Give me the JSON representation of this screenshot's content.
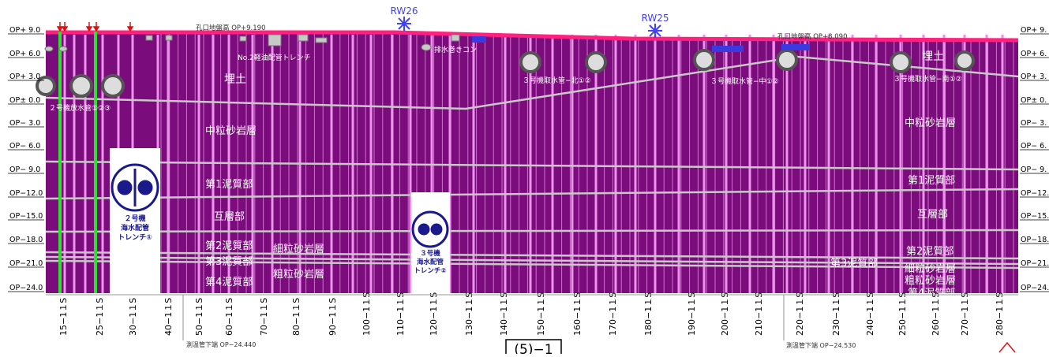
{
  "elevation_labels_left": [
    "OP+ 9.0",
    "OP+ 6.0",
    "OP+ 3.0",
    "OP± 0.0",
    "OP− 3.0",
    "OP− 6.0",
    "OP− 9.0",
    "OP−12.0",
    "OP−15.0",
    "OP−18.0",
    "OP−21.0",
    "OP−24.0"
  ],
  "elevation_labels_right": [
    "OP+ 9.",
    "OP+ 6.",
    "OP+ 3.",
    "OP± 0.",
    "OP− 3.",
    "OP− 6.",
    "OP− 9.",
    "OP−12.",
    "OP−15.",
    "OP−18.",
    "OP−21.",
    "OP−24."
  ],
  "wells": [
    "RW26",
    "RW25"
  ],
  "surface_labels": [
    "孔口地盤高 OP+9.190",
    "孔口地盤高 OP+8.090"
  ],
  "layers": [
    "埋土",
    "埋土",
    "中粒砂岩層",
    "中粒砂岩層",
    "第1泥質部",
    "第1泥質部",
    "互層部",
    "互層部",
    "第2泥質部",
    "第2泥質部",
    "第3泥質部",
    "第3泥質部",
    "第4泥質部",
    "第4泥質部",
    "細粒砂岩層",
    "細粒砂岩層",
    "粗粒砂岩層",
    "粗粒砂岩層"
  ],
  "structures": [
    "No.2軽油配管トレンチ",
    "排水巻きコン",
    "２号機放水管①②③",
    "３号機取水管−北①②",
    "３号機取水管−中①②",
    "３号機取水管−南①②"
  ],
  "trenches": [
    {
      "lines": [
        "２号機",
        "海水配管",
        "トレンチ①"
      ]
    },
    {
      "lines": [
        "３号機",
        "海水配管",
        "トレンチ②"
      ]
    }
  ],
  "sheet_labels": [
    "15−1１S",
    "25−1１S",
    "30−1１S",
    "40−1１S",
    "50−1１S",
    "60−1１S",
    "70−1１S",
    "80−1１S",
    "90−1１S",
    "100−1１S",
    "110−1１S",
    "120−1１S",
    "130−1１S",
    "140−1１S",
    "150−1１S",
    "160−1１S",
    "170−1１S",
    "180−1１S",
    "190−1１S",
    "200−1１S",
    "210−1１S",
    "220−1１S",
    "230−1１S",
    "240−1１S",
    "250−1１S",
    "260−1１S",
    "270−1１S",
    "280−1１S"
  ],
  "pipe_bottoms": [
    "測温管下端 OP−24.440",
    "測温管下端 OP−24.530"
  ],
  "figure_number": "(5)−1",
  "colors": {
    "ground": "#7b0c7b",
    "pile": "#e878e8",
    "surface": "#ff2080",
    "green": "#2ee02e",
    "line": "#c8c8c8",
    "trench": "#1a1a8c"
  }
}
